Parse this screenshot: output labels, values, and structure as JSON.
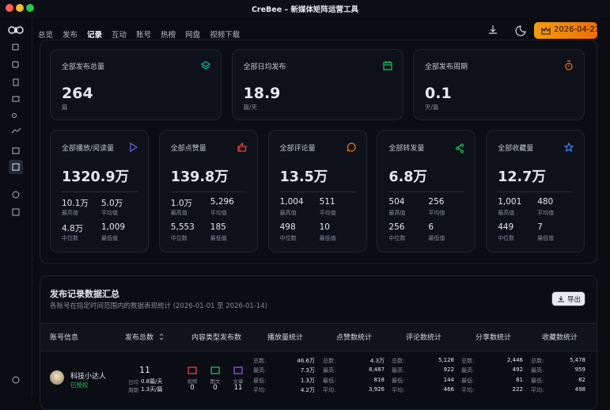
{
  "window": {
    "title": "CreBee – 新媒体矩阵运营工具"
  },
  "nav": {
    "items": [
      "总览",
      "发布",
      "记录",
      "互动",
      "账号",
      "热榜",
      "网盘",
      "视频下载"
    ],
    "active": 2,
    "date": "2026-04-21"
  },
  "summary": [
    {
      "label": "全部发布总量",
      "value": 264,
      "unit": "篇"
    },
    {
      "label": "全部日均发布",
      "value": 18.9,
      "unit": "篇/天"
    },
    {
      "label": "全部发布周期",
      "value": 0.1,
      "unit": "天/篇"
    }
  ],
  "metrics": [
    {
      "label": "全部播放/阅读量",
      "value": "1320.9万",
      "stats": [
        {
          "value": "10.1万",
          "label": "最高值"
        },
        {
          "value": "5.0万",
          "label": "平均值"
        },
        {
          "value": "4.8万",
          "label": "中位数"
        },
        {
          "value": "1,009",
          "label": "最低值"
        }
      ]
    },
    {
      "label": "全部点赞量",
      "value": "139.8万",
      "stats": [
        {
          "value": "1.0万",
          "label": "最高值"
        },
        {
          "value": "5,296",
          "label": "平均值"
        },
        {
          "value": "5,553",
          "label": "中位数"
        },
        {
          "value": "185",
          "label": "最低值"
        }
      ]
    },
    {
      "label": "全部评论量",
      "value": "13.5万",
      "stats": [
        {
          "value": "1,004",
          "label": "最高值"
        },
        {
          "value": "511",
          "label": "平均值"
        },
        {
          "value": "498",
          "label": "中位数"
        },
        {
          "value": "10",
          "label": "最低值"
        }
      ]
    },
    {
      "label": "全部转发量",
      "value": "6.8万",
      "stats": [
        {
          "value": "504",
          "label": "最高值"
        },
        {
          "value": "256",
          "label": "平均值"
        },
        {
          "value": "256",
          "label": "中位数"
        },
        {
          "value": "6",
          "label": "最低值"
        }
      ]
    },
    {
      "label": "全部收藏量",
      "value": "12.7万",
      "stats": [
        {
          "value": "1,001",
          "label": "最高值"
        },
        {
          "value": "480",
          "label": "平均值"
        },
        {
          "value": "449",
          "label": "中位数"
        },
        {
          "value": "7",
          "label": "最低值"
        }
      ]
    }
  ],
  "records": {
    "title": "发布记录数据汇总",
    "subtitle": "各账号在指定时间范围内的数据表现统计 (2026-01-01 至 2026-01-14)",
    "export": "导出",
    "columns": [
      "账号信息",
      "发布总数",
      "内容类型发布数",
      "播放量统计",
      "点赞数统计",
      "评论数统计",
      "分享数统计",
      "收藏数统计"
    ],
    "stat_labels": [
      "总数:",
      "最高:",
      "最低:",
      "平均:"
    ],
    "rows": [
      {
        "name": "科技小达人",
        "status": "已授权",
        "total": 11,
        "daily_label": "日均",
        "daily": "0.8篇/天",
        "cycle_label": "周期",
        "cycle": "1.3天/篇",
        "types": [
          {
            "label": "视频",
            "count": 0
          },
          {
            "label": "图文",
            "count": 0
          },
          {
            "label": "文章",
            "count": 11
          }
        ],
        "stats": [
          [
            "46.6万",
            "7.3万",
            "1.3万",
            "4.2万"
          ],
          [
            "4.3万",
            "8,487",
            "818",
            "3,926"
          ],
          [
            "5,128",
            "922",
            "144",
            "466"
          ],
          [
            "2,446",
            "492",
            "81",
            "222"
          ],
          [
            "5,478",
            "959",
            "82",
            "498"
          ]
        ]
      }
    ]
  }
}
